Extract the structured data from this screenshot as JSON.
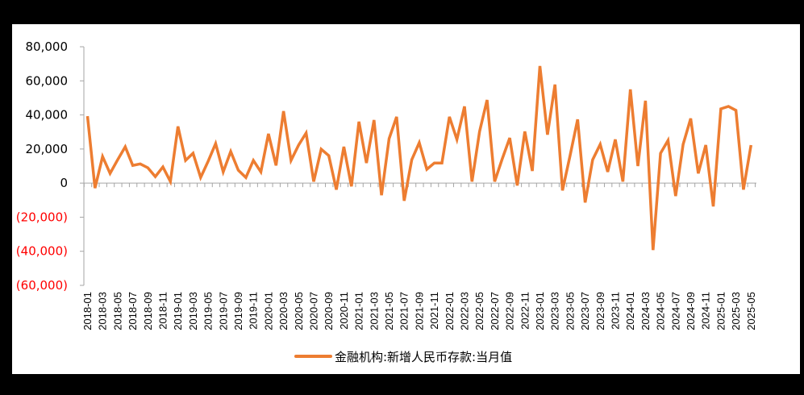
{
  "chart_data": {
    "type": "line",
    "title": "",
    "xlabel": "",
    "ylabel": "",
    "ylim": [
      -60000,
      80000
    ],
    "yticks": [
      80000,
      60000,
      40000,
      20000,
      0,
      -20000,
      -40000,
      -60000
    ],
    "ytick_labels": [
      "80,000",
      "60,000",
      "40,000",
      "20,000",
      "0",
      "(20,000)",
      "(40,000)",
      "(60,000)"
    ],
    "negative_label_color": "#FF0000",
    "grid": false,
    "legend_position": "bottom",
    "x_label_step": 2,
    "categories": [
      "2018-01",
      "2018-02",
      "2018-03",
      "2018-04",
      "2018-05",
      "2018-06",
      "2018-07",
      "2018-08",
      "2018-09",
      "2018-10",
      "2018-11",
      "2018-12",
      "2019-01",
      "2019-02",
      "2019-03",
      "2019-04",
      "2019-05",
      "2019-06",
      "2019-07",
      "2019-08",
      "2019-09",
      "2019-10",
      "2019-11",
      "2019-12",
      "2020-01",
      "2020-02",
      "2020-03",
      "2020-04",
      "2020-05",
      "2020-06",
      "2020-07",
      "2020-08",
      "2020-09",
      "2020-10",
      "2020-11",
      "2020-12",
      "2021-01",
      "2021-02",
      "2021-03",
      "2021-04",
      "2021-05",
      "2021-06",
      "2021-07",
      "2021-08",
      "2021-09",
      "2021-10",
      "2021-11",
      "2021-12",
      "2022-01",
      "2022-02",
      "2022-03",
      "2022-04",
      "2022-05",
      "2022-06",
      "2022-07",
      "2022-08",
      "2022-09",
      "2022-10",
      "2022-11",
      "2022-12",
      "2023-01",
      "2023-02",
      "2023-03",
      "2023-04",
      "2023-05",
      "2023-06",
      "2023-07",
      "2023-08",
      "2023-09",
      "2023-10",
      "2023-11",
      "2023-12",
      "2024-01",
      "2024-02",
      "2024-03",
      "2024-04",
      "2024-05",
      "2024-06",
      "2024-07",
      "2024-08",
      "2024-09",
      "2024-10",
      "2024-11",
      "2024-12",
      "2025-01",
      "2025-02",
      "2025-03",
      "2025-04",
      "2025-05"
    ],
    "series": [
      {
        "name": "金融机构:新增人民币存款:当月值",
        "color": "#ED7D31",
        "values": [
          39300,
          -2900,
          15600,
          5700,
          13700,
          21300,
          10400,
          11300,
          9000,
          3800,
          9500,
          900,
          33200,
          13300,
          17500,
          3300,
          12800,
          23200,
          6600,
          18500,
          7600,
          3300,
          13300,
          6600,
          28900,
          10400,
          42200,
          13300,
          22300,
          29400,
          900,
          19900,
          16100,
          -3800,
          21300,
          -1900,
          36000,
          11800,
          37000,
          -7100,
          26100,
          38900,
          -10400,
          13700,
          23700,
          8100,
          11800,
          11800,
          38900,
          25600,
          45000,
          900,
          30300,
          48800,
          900,
          14200,
          26500,
          -1400,
          30300,
          7100,
          68700,
          28400,
          57800,
          -4300,
          16100,
          37400,
          -11400,
          13700,
          22700,
          6600,
          25600,
          900,
          55000,
          10000,
          48300,
          -39300,
          17500,
          25100,
          -7600,
          22700,
          37900,
          5700,
          22300,
          -13700,
          43600,
          45000,
          42700,
          -3800,
          22300
        ]
      }
    ]
  },
  "legend": {
    "label": "金融机构:新增人民币存款:当月值"
  }
}
